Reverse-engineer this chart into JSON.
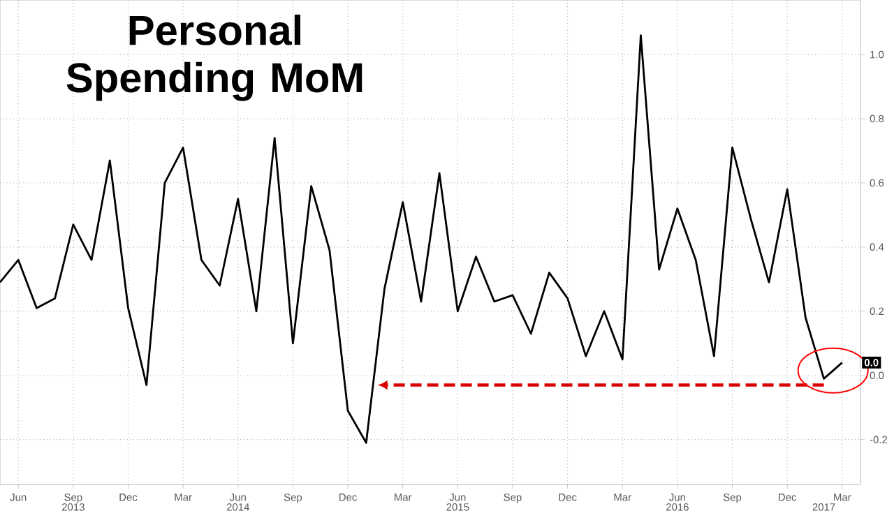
{
  "chart_data": {
    "type": "line",
    "title": "Personal Spending MoM",
    "x": [
      "2013-05",
      "2013-06",
      "2013-07",
      "2013-08",
      "2013-09",
      "2013-10",
      "2013-11",
      "2013-12",
      "2014-01",
      "2014-02",
      "2014-03",
      "2014-04",
      "2014-05",
      "2014-06",
      "2014-07",
      "2014-08",
      "2014-09",
      "2014-10",
      "2014-11",
      "2014-12",
      "2015-01",
      "2015-02",
      "2015-03",
      "2015-04",
      "2015-05",
      "2015-06",
      "2015-07",
      "2015-08",
      "2015-09",
      "2015-10",
      "2015-11",
      "2015-12",
      "2016-01",
      "2016-02",
      "2016-03",
      "2016-04",
      "2016-05",
      "2016-06",
      "2016-07",
      "2016-08",
      "2016-09",
      "2016-10",
      "2016-11",
      "2016-12",
      "2017-01",
      "2017-02",
      "2017-03"
    ],
    "series": [
      {
        "color": "#000000",
        "values": [
          0.29,
          0.36,
          0.21,
          0.24,
          0.47,
          0.36,
          0.67,
          0.21,
          -0.03,
          0.6,
          0.71,
          0.36,
          0.28,
          0.55,
          0.2,
          0.74,
          0.1,
          0.59,
          0.39,
          -0.11,
          -0.21,
          0.27,
          0.54,
          0.23,
          0.63,
          0.2,
          0.37,
          0.23,
          0.25,
          0.13,
          0.32,
          0.24,
          0.06,
          0.2,
          0.05,
          1.06,
          0.33,
          0.52,
          0.36,
          0.06,
          0.71,
          0.49,
          0.29,
          0.58,
          0.18,
          -0.01,
          0.04
        ]
      }
    ],
    "xlim": [
      "2013-05",
      "2017-04"
    ],
    "xticks": [
      {
        "value": "2013-06",
        "label": "Jun"
      },
      {
        "value": "2013-09",
        "label": "Sep"
      },
      {
        "value": "2013-12",
        "label": "Dec"
      },
      {
        "value": "2014-03",
        "label": "Mar"
      },
      {
        "value": "2014-06",
        "label": "Jun"
      },
      {
        "value": "2014-09",
        "label": "Sep"
      },
      {
        "value": "2014-12",
        "label": "Dec"
      },
      {
        "value": "2015-03",
        "label": "Mar"
      },
      {
        "value": "2015-06",
        "label": "Jun"
      },
      {
        "value": "2015-09",
        "label": "Sep"
      },
      {
        "value": "2015-12",
        "label": "Dec"
      },
      {
        "value": "2016-03",
        "label": "Mar"
      },
      {
        "value": "2016-06",
        "label": "Jun"
      },
      {
        "value": "2016-09",
        "label": "Sep"
      },
      {
        "value": "2016-12",
        "label": "Dec"
      },
      {
        "value": "2017-03",
        "label": "Mar"
      }
    ],
    "x2lim": [
      "2013-05",
      "2017-04"
    ],
    "x2ticks": [
      {
        "value": "2013-09",
        "label": "2013"
      },
      {
        "value": "2014-06",
        "label": "2014"
      },
      {
        "value": "2015-06",
        "label": "2015"
      },
      {
        "value": "2016-06",
        "label": "2016"
      },
      {
        "value": "2017-02",
        "label": "2017"
      }
    ],
    "ylim": [
      -0.34,
      1.17
    ],
    "yticks": [
      -0.2,
      {
        "value": 0,
        "label": "0.0"
      },
      0.2,
      0.4,
      0.6,
      0.8,
      {
        "value": 1,
        "label": "1.0"
      }
    ],
    "annotations": [
      {
        "text": "0.0",
        "x": "2017-03",
        "y": 0.04
      }
    ],
    "grid": true,
    "line_style": "solid",
    "marker": "none"
  }
}
